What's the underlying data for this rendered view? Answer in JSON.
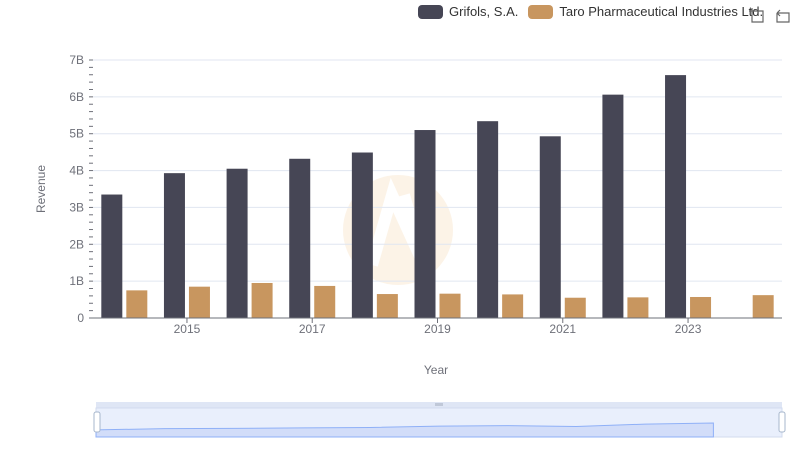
{
  "legend": [
    {
      "name": "Grifols, S.A.",
      "color": "#464655"
    },
    {
      "name": "Taro Pharmaceutical Industries Ltd.",
      "color": "#c8965f"
    }
  ],
  "toolbox": {
    "zoom_icon": "zoom-icon",
    "restore_icon": "restore-icon"
  },
  "chart_data": {
    "type": "bar",
    "x": [
      2014,
      2015,
      2016,
      2017,
      2018,
      2019,
      2020,
      2021,
      2022,
      2023,
      2024
    ],
    "x_tick_labels": [
      "2015",
      "2017",
      "2019",
      "2021",
      "2023"
    ],
    "xlabel": "Year",
    "ylabel": "Revenue",
    "ylim": [
      0,
      7000000000
    ],
    "y_tick_labels": [
      "0",
      "1B",
      "2B",
      "3B",
      "4B",
      "5B",
      "6B",
      "7B"
    ],
    "grid": true,
    "legend_position": "top-right",
    "series": [
      {
        "name": "Grifols, S.A.",
        "color": "#464655",
        "values": [
          3350000000,
          3930000000,
          4050000000,
          4320000000,
          4490000000,
          5100000000,
          5340000000,
          4930000000,
          6060000000,
          6590000000,
          null
        ]
      },
      {
        "name": "Taro Pharmaceutical Industries Ltd.",
        "color": "#c8965f",
        "values": [
          750000000,
          850000000,
          950000000,
          870000000,
          650000000,
          660000000,
          640000000,
          550000000,
          560000000,
          570000000,
          620000000
        ]
      }
    ]
  }
}
